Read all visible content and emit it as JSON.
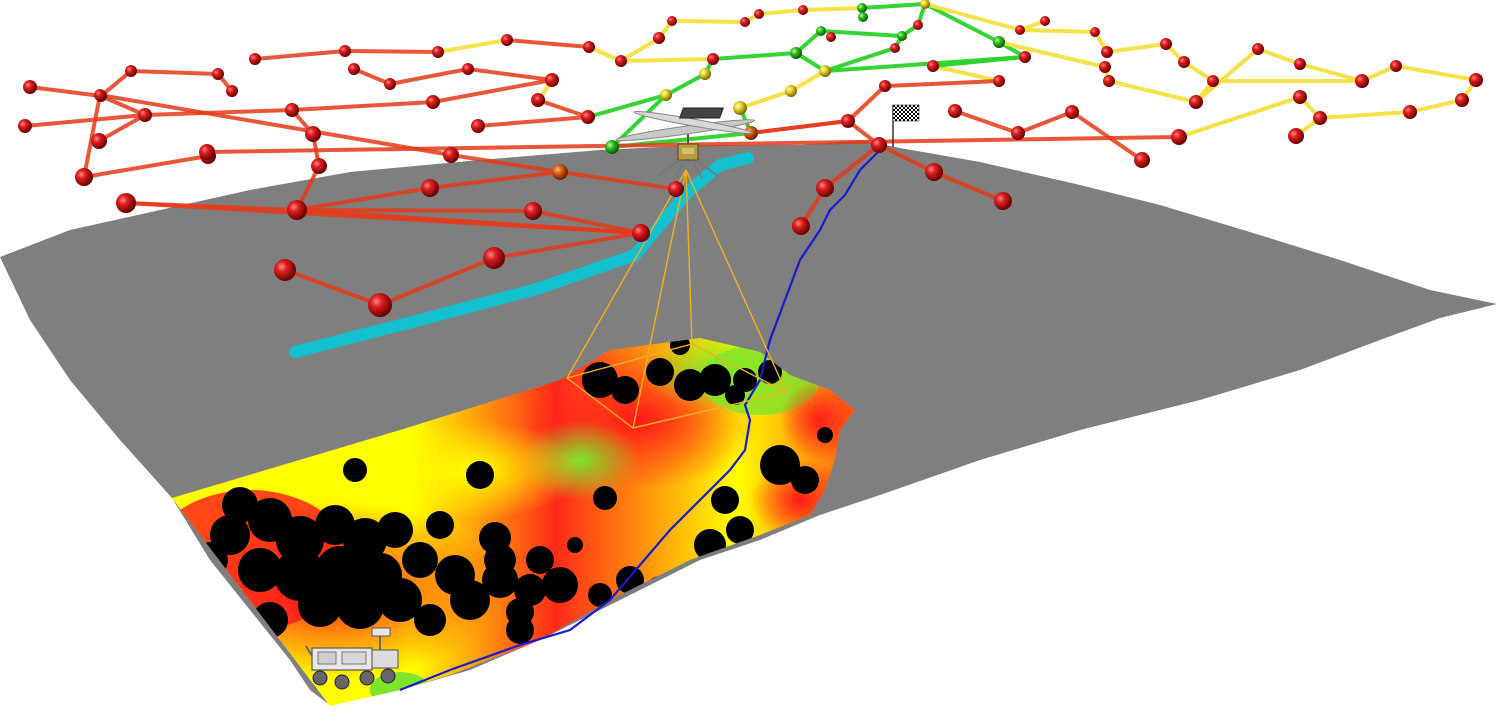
{
  "scene": {
    "terrain_color": "#7f7f7f",
    "path_color": "#12c0d0",
    "trail_color": "#1a1ad0",
    "frustum_color": "#f0b020",
    "node_colors": {
      "high": "#d81818",
      "mid": "#f0e030",
      "low": "#30c020"
    },
    "edge_colors": {
      "bad": "#e63a1a",
      "warn": "#f5e040",
      "good": "#2ad22a"
    },
    "map_colors": {
      "unsafe": "#ff1a1a",
      "medium": "#ffff00",
      "safe": "#7fe52a",
      "obstacle": "#000000"
    },
    "icons": [
      "helicopter-icon",
      "rover-icon",
      "goal-flag-icon"
    ]
  }
}
